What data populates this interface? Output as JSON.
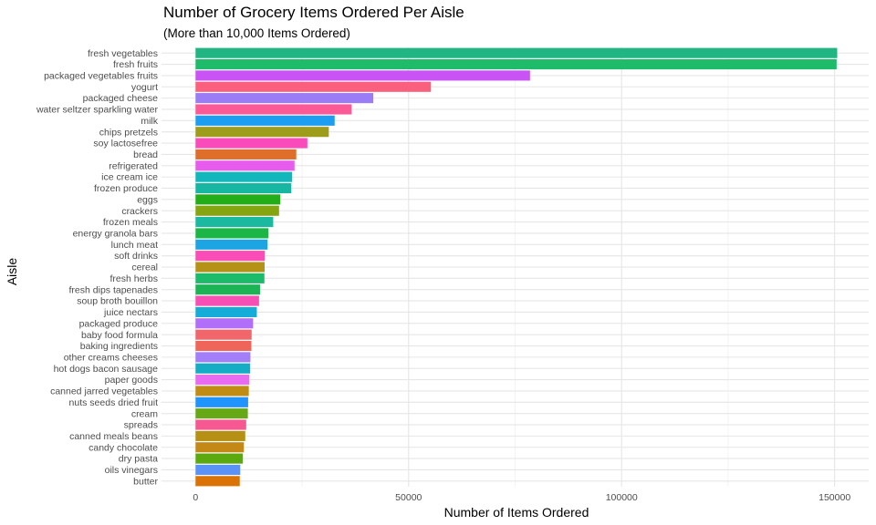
{
  "chart_data": {
    "type": "bar",
    "orientation": "horizontal",
    "title": "Number of Grocery Items Ordered Per Aisle",
    "subtitle": "(More than 10,000 Items Ordered)",
    "xlabel": "Number of Items Ordered",
    "ylabel": "Aisle",
    "xlim": [
      -8000,
      158000
    ],
    "xticks": [
      0,
      50000,
      100000,
      150000
    ],
    "xtick_labels": [
      "0",
      "50000",
      "100000",
      "150000"
    ],
    "grid": true,
    "categories": [
      "fresh vegetables",
      "fresh fruits",
      "packaged vegetables fruits",
      "yogurt",
      "packaged cheese",
      "water seltzer sparkling water",
      "milk",
      "chips pretzels",
      "soy lactosefree",
      "bread",
      "refrigerated",
      "ice cream ice",
      "frozen produce",
      "eggs",
      "crackers",
      "frozen meals",
      "energy granola bars",
      "lunch meat",
      "soft drinks",
      "cereal",
      "fresh herbs",
      "fresh dips tapenades",
      "soup broth bouillon",
      "juice nectars",
      "packaged produce",
      "baby food formula",
      "baking ingredients",
      "other creams cheeses",
      "hot dogs bacon sausage",
      "paper goods",
      "canned jarred vegetables",
      "nuts seeds dried fruit",
      "cream",
      "spreads",
      "canned meals beans",
      "candy chocolate",
      "dry pasta",
      "oils vinegars",
      "butter"
    ],
    "values": [
      150609,
      150473,
      78493,
      55240,
      41699,
      36617,
      32644,
      31269,
      26240,
      23635,
      23228,
      22676,
      22453,
      19875,
      19592,
      18221,
      17116,
      16894,
      16262,
      16201,
      16153,
      15128,
      14893,
      14369,
      13495,
      13150,
      13088,
      12869,
      12819,
      12566,
      12488,
      12329,
      12263,
      11874,
      11659,
      11334,
      11102,
      10479,
      10366
    ],
    "colors": [
      "#20B582",
      "#1EBB6A",
      "#C953F5",
      "#FA5F7E",
      "#9A7CF6",
      "#FC5A97",
      "#1D9EF1",
      "#9E9D1B",
      "#F94BBA",
      "#DF6E2A",
      "#E75BED",
      "#12B7BB",
      "#17B6A3",
      "#23AD19",
      "#84A50F",
      "#1BBAA0",
      "#1BB645",
      "#1CA4E3",
      "#FB4DB7",
      "#B49117",
      "#1CBA6B",
      "#1CB354",
      "#F84FB5",
      "#15ADD8",
      "#B16EF8",
      "#F1666B",
      "#F06559",
      "#A37EF9",
      "#14ADC5",
      "#E96BF1",
      "#C08C13",
      "#1E94FC",
      "#67A817",
      "#F65891",
      "#B59015",
      "#C48817",
      "#5BA90E",
      "#5B92F8",
      "#DB7205"
    ]
  }
}
